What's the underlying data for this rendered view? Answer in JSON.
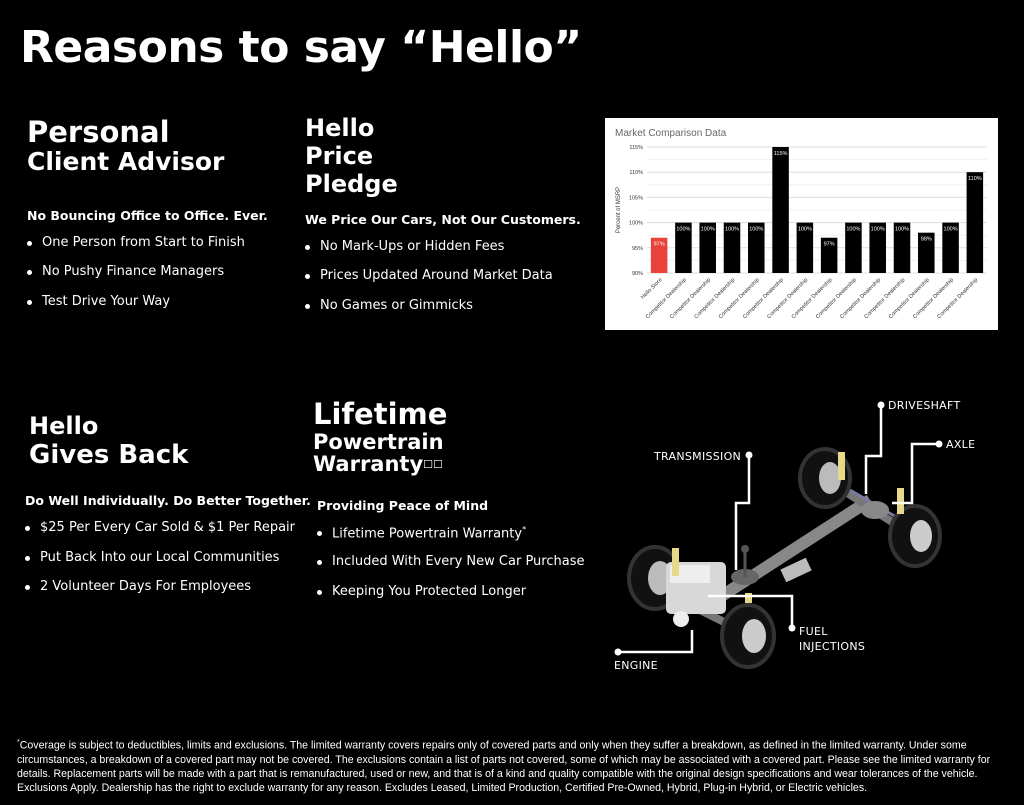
{
  "title": "Reasons to say “Hello”",
  "sections": {
    "advisor": {
      "title_line1": "Personal",
      "title_line2": "Client Advisor",
      "subtitle": "No Bouncing Office to Office. Ever.",
      "bullets": [
        "One Person from Start to Finish",
        "No Pushy Finance Managers",
        "Test Drive Your Way"
      ]
    },
    "price": {
      "title_line1": "Hello",
      "title_line2": "Price",
      "title_line3": "Pledge",
      "subtitle": "We Price Our Cars, Not Our Customers.",
      "bullets": [
        "No Mark-Ups or Hidden Fees",
        "Prices Updated Around Market Data",
        "No Games or Gimmicks"
      ]
    },
    "gives": {
      "title_line1": "Hello",
      "title_line2": "Gives Back",
      "subtitle": "Do Well Individually. Do Better Together.",
      "bullets": [
        "$25 Per Every Car Sold & $1 Per Repair",
        "Put Back Into our Local Communities",
        "2 Volunteer Days For Employees"
      ]
    },
    "warranty": {
      "title_line1": "Lifetime",
      "title_line2": "Powertrain",
      "title_line3": "Warranty",
      "title_mark": "☐☐",
      "subtitle": "Providing Peace of Mind",
      "bullets": [
        "Lifetime Powertrain Warranty",
        "Included With Every New Car Purchase",
        "Keeping You Protected Longer"
      ],
      "bullet_mark": "*"
    }
  },
  "diagram_labels": {
    "driveshaft": "DRIVESHAFT",
    "axle": "AXLE",
    "transmission": "TRANSMISSION",
    "fuel1": "FUEL",
    "fuel2": "INJECTIONS",
    "engine": "ENGINE"
  },
  "chart_data": {
    "type": "bar",
    "title": "Market Comparison Data",
    "xlabel": "",
    "ylabel": "Percent of MSRP",
    "ylim": [
      90,
      115
    ],
    "yticks": [
      "90%",
      "95%",
      "100%",
      "105%",
      "110%",
      "115%"
    ],
    "categories": [
      "Hello Store",
      "Competitor Dealership",
      "Competitor Dealership",
      "Competitor Dealership",
      "Competitor Dealership",
      "Competitor Dealership",
      "Competitor Dealership",
      "Competitor Dealership",
      "Competitor Dealership",
      "Competitor Dealership",
      "Competitor Dealership",
      "Competitor Dealership",
      "Competitor Dealership",
      "Competitor Dealership"
    ],
    "values": [
      97,
      100,
      100,
      100,
      100,
      115,
      100,
      97,
      100,
      100,
      100,
      98,
      100,
      110
    ],
    "data_labels": [
      "97%",
      "100%",
      "100%",
      "100%",
      "100%",
      "115%",
      "100%",
      "97%",
      "100%",
      "100%",
      "100%",
      "98%",
      "100%",
      "110%"
    ],
    "colors": {
      "highlight": "#e8423a",
      "default": "#000000"
    },
    "grid": true
  },
  "footnote_mark": "*",
  "footnote": "Coverage is subject to deductibles, limits and exclusions. The limited warranty covers repairs only of covered parts and only when they suffer a breakdown, as defined in the limited warranty. Under some circumstances, a breakdown of a covered part may not be covered. The exclusions contain a list of parts not covered, some of which may be associated with a covered part. Please see the limited warranty for details. Replacement parts will be made with a part that is remanufactured, used or new, and that is of a kind and quality compatible with the original design specifications and wear tolerances of the vehicle. Exclusions Apply. Dealership has the right to exclude warranty for any reason. Excludes Leased, Limited Production, Certified Pre-Owned, Hybrid, Plug-in Hybrid, or Electric vehicles."
}
